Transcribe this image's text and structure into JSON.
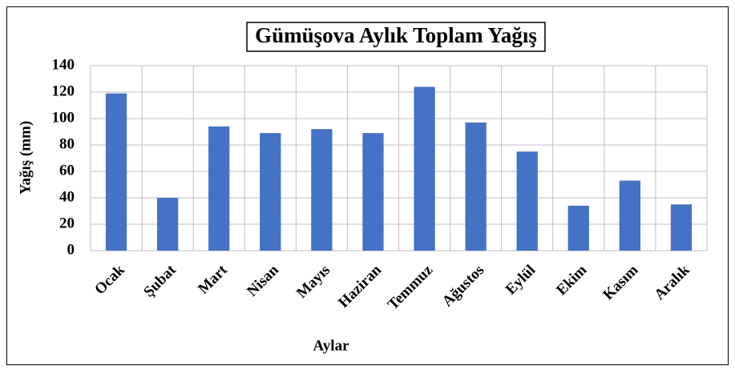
{
  "chart_data": {
    "type": "bar",
    "title": "Gümüşova Aylık Toplam Yağış",
    "x_label": "Aylar",
    "y_label": "Yağış (mm)",
    "categories": [
      "Ocak",
      "Şubat",
      "Mart",
      "Nisan",
      "Mayıs",
      "Haziran",
      "Temmuz",
      "Ağustos",
      "Eylül",
      "Ekim",
      "Kasım",
      "Aralık"
    ],
    "values": [
      119,
      40,
      94,
      89,
      92,
      89,
      124,
      97,
      75,
      34,
      53,
      35
    ],
    "color": "#4472c4",
    "ylim": [
      0,
      140
    ],
    "yticks": [
      0,
      20,
      40,
      60,
      80,
      100,
      120,
      140
    ],
    "grid": true
  }
}
